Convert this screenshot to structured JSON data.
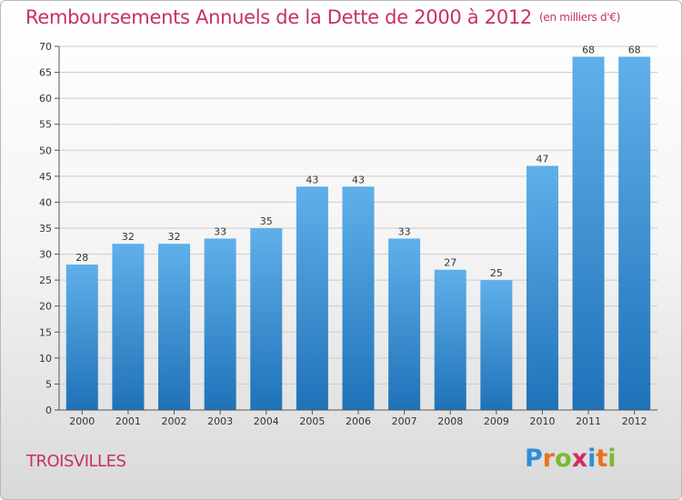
{
  "header": {
    "title": "Remboursements Annuels de la Dette de 2000 à 2012",
    "unit": "(en milliers d'€)"
  },
  "footer": {
    "commune": "TROISVILLES",
    "logo": {
      "letters": [
        "P",
        "r",
        "o",
        "x",
        "i",
        "t",
        "i"
      ],
      "colors": [
        "#2e8fd6",
        "#e8731e",
        "#7cb82f",
        "#d12a64",
        "#2e8fd6",
        "#e8731e",
        "#7cb82f"
      ]
    }
  },
  "colors": {
    "bar_light": "#5fb0ea",
    "bar_dark": "#1f72b8",
    "label": "#333333",
    "grid": "#cccccc",
    "axis": "#555555",
    "title": "#c8325a"
  },
  "chart_data": {
    "type": "bar",
    "title": "Remboursements Annuels de la Dette de 2000 à 2012",
    "xlabel": "",
    "ylabel": "",
    "ylim": [
      0,
      70
    ],
    "yticks": [
      0,
      5,
      10,
      15,
      20,
      25,
      30,
      35,
      40,
      45,
      50,
      55,
      60,
      65,
      70
    ],
    "grid": true,
    "categories": [
      "2000",
      "2001",
      "2002",
      "2003",
      "2004",
      "2005",
      "2006",
      "2007",
      "2008",
      "2009",
      "2010",
      "2011",
      "2012"
    ],
    "values": [
      28,
      32,
      32,
      33,
      35,
      43,
      43,
      33,
      27,
      25,
      47,
      68,
      68
    ]
  }
}
